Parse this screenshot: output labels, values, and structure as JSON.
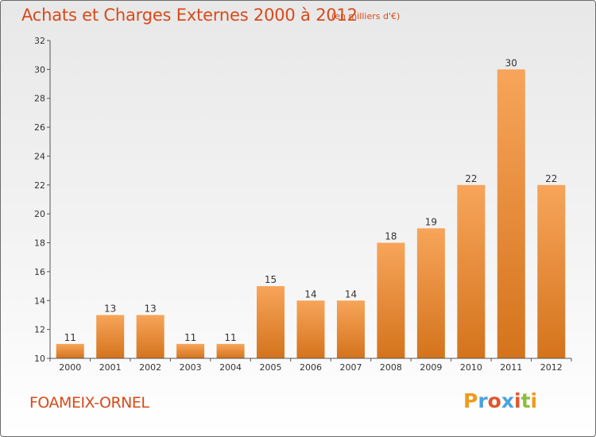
{
  "chart_data": {
    "type": "bar",
    "title": "Achats et Charges Externes 2000 à 2012",
    "subtitle": "(en milliers d'€)",
    "categories": [
      "2000",
      "2001",
      "2002",
      "2003",
      "2004",
      "2005",
      "2006",
      "2007",
      "2008",
      "2009",
      "2010",
      "2011",
      "2012"
    ],
    "values": [
      11,
      13,
      13,
      11,
      11,
      15,
      14,
      14,
      18,
      19,
      22,
      30,
      22
    ],
    "ylim": [
      10,
      32
    ],
    "yticks": [
      10,
      12,
      14,
      16,
      18,
      20,
      22,
      24,
      26,
      28,
      30,
      32
    ],
    "grid": false,
    "bar_color_top": "#f7a55a",
    "bar_color_bottom": "#d4731c"
  },
  "footer": {
    "commune": "FOAMEIX-ORNEL",
    "brand_letters": [
      "P",
      "r",
      "o",
      "x",
      "i",
      "t",
      "i"
    ],
    "brand_colors": [
      "#f09a1e",
      "#4aa3df",
      "#e0552b",
      "#4aa3df",
      "#e0552b",
      "#8bbf3a",
      "#f09a1e"
    ]
  }
}
